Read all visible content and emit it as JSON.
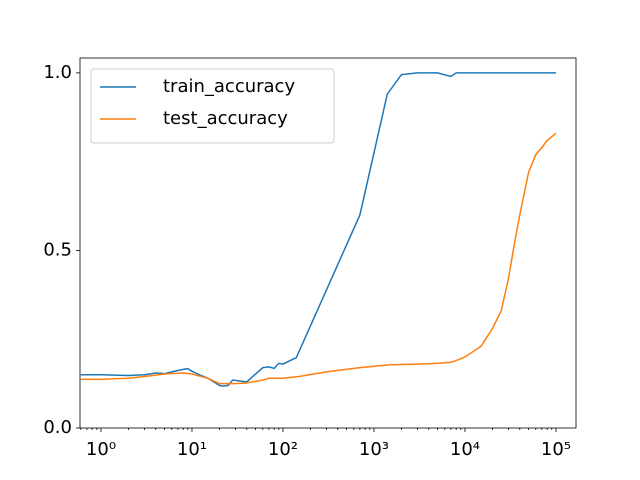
{
  "chart_data": {
    "type": "line",
    "xscale": "log",
    "xlim": [
      0.588,
      166000
    ],
    "ylim": [
      0,
      1.042
    ],
    "xticks": [
      {
        "value": 1,
        "label": "10⁰"
      },
      {
        "value": 10,
        "label": "10¹"
      },
      {
        "value": 100,
        "label": "10²"
      },
      {
        "value": 1000,
        "label": "10³"
      },
      {
        "value": 10000,
        "label": "10⁴"
      },
      {
        "value": 100000,
        "label": "10⁵"
      }
    ],
    "yticks": [
      {
        "value": 0,
        "label": "0.0"
      },
      {
        "value": 0.5,
        "label": "0.5"
      },
      {
        "value": 1,
        "label": "1.0"
      }
    ],
    "legend": "upper left",
    "series": [
      {
        "name": "train_accuracy",
        "color": "#1f77b4",
        "x": [
          0.6,
          1,
          2,
          3,
          4,
          5,
          6,
          8,
          9,
          10,
          12,
          15,
          20,
          22,
          25,
          28,
          40,
          60,
          70,
          80,
          90,
          100,
          120,
          140,
          700,
          1400,
          2000,
          3000,
          5000,
          7000,
          8000,
          10000,
          100000
        ],
        "values": [
          0.15,
          0.15,
          0.148,
          0.15,
          0.155,
          0.153,
          0.158,
          0.165,
          0.167,
          0.16,
          0.15,
          0.14,
          0.12,
          0.118,
          0.12,
          0.135,
          0.13,
          0.17,
          0.172,
          0.168,
          0.182,
          0.18,
          0.19,
          0.198,
          0.6,
          0.94,
          0.995,
          1.0,
          1.0,
          0.99,
          1.0,
          1.0,
          1.0
        ]
      },
      {
        "name": "test_accuracy",
        "color": "#ff7f0e",
        "x": [
          0.6,
          1,
          2,
          3,
          5,
          8,
          10,
          15,
          20,
          30,
          40,
          60,
          70,
          100,
          150,
          300,
          700,
          1500,
          3000,
          5000,
          7000,
          8000,
          10000,
          15000,
          20000,
          25000,
          30000,
          35000,
          40000,
          50000,
          60000,
          70000,
          80000,
          100000
        ],
        "values": [
          0.137,
          0.137,
          0.14,
          0.145,
          0.152,
          0.155,
          0.152,
          0.14,
          0.125,
          0.125,
          0.127,
          0.135,
          0.14,
          0.14,
          0.145,
          0.158,
          0.17,
          0.178,
          0.18,
          0.182,
          0.185,
          0.19,
          0.2,
          0.23,
          0.28,
          0.33,
          0.42,
          0.52,
          0.6,
          0.72,
          0.77,
          0.79,
          0.81,
          0.83
        ]
      }
    ]
  }
}
